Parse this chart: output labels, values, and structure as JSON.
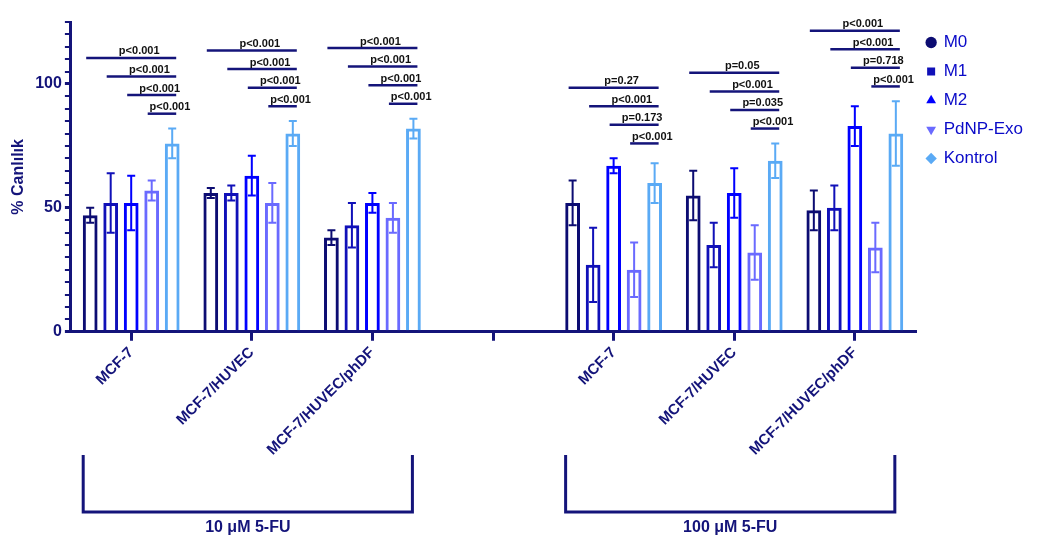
{
  "chart_data": {
    "type": "bar",
    "ylabel": "% Canlılık",
    "categories": [
      "MCF-7",
      "MCF-7/HUVEC",
      "MCF-7/HUVEC/phDF",
      null,
      "MCF-7",
      "MCF-7/HUVEC",
      "MCF-7/HUVEC/phDF"
    ],
    "series": [
      {
        "name": "M0",
        "color": "#0c0c72",
        "marker": "circle",
        "values": [
          47,
          56,
          38,
          null,
          52,
          55,
          49
        ],
        "errors": [
          3,
          2,
          3,
          null,
          9,
          10,
          8
        ]
      },
      {
        "name": "M1",
        "color": "#1010b8",
        "marker": "square",
        "values": [
          52,
          56,
          43,
          null,
          27,
          35,
          50
        ],
        "errors": [
          12,
          3,
          9,
          null,
          15,
          9,
          9
        ]
      },
      {
        "name": "M2",
        "color": "#0000ff",
        "marker": "triangle",
        "values": [
          52,
          63,
          52,
          null,
          67,
          56,
          83
        ],
        "errors": [
          11,
          8,
          4,
          null,
          3,
          10,
          8
        ]
      },
      {
        "name": "PdNP-Exo",
        "color": "#6a6aff",
        "marker": "triangle-down",
        "values": [
          57,
          52,
          46,
          null,
          25,
          32,
          34
        ],
        "errors": [
          4,
          8,
          6,
          null,
          11,
          11,
          10
        ]
      },
      {
        "name": "Kontrol",
        "color": "#5aaaf5",
        "marker": "diamond",
        "values": [
          76,
          80,
          82,
          null,
          60,
          69,
          80
        ],
        "errors": [
          6,
          5,
          4,
          null,
          8,
          7,
          13
        ]
      }
    ],
    "ylim": [
      0,
      125
    ],
    "yticks": [
      0,
      {
        "value": 5,
        "label": null
      },
      {
        "value": 10,
        "label": null
      },
      {
        "value": 15,
        "label": null
      },
      {
        "value": 20,
        "label": null
      },
      {
        "value": 25,
        "label": null
      },
      {
        "value": 30,
        "label": null
      },
      {
        "value": 35,
        "label": null
      },
      {
        "value": 40,
        "label": null
      },
      {
        "value": 45,
        "label": null
      },
      50,
      {
        "value": 55,
        "label": null
      },
      {
        "value": 60,
        "label": null
      },
      {
        "value": 65,
        "label": null
      },
      {
        "value": 70,
        "label": null
      },
      {
        "value": 75,
        "label": null
      },
      {
        "value": 80,
        "label": null
      },
      {
        "value": 85,
        "label": null
      },
      {
        "value": 90,
        "label": null
      },
      {
        "value": 95,
        "label": null
      },
      100,
      {
        "value": 105,
        "label": null
      },
      {
        "value": 110,
        "label": null
      },
      {
        "value": 115,
        "label": null
      },
      {
        "value": 120,
        "label": null
      },
      {
        "value": 125,
        "label": null
      }
    ],
    "grid": false,
    "legend": "top right",
    "annotations": [
      "p<0.001",
      "p<0.001",
      "p<0.001",
      "p<0.001",
      "p<0.001",
      "p<0.001",
      "p<0.001",
      "p<0.001",
      "p<0.001",
      "p<0.001",
      "p<0.001",
      "p<0.001",
      "p=0.27",
      "p<0.001",
      "p=0.173",
      "p<0.001",
      "p=0.05",
      "p<0.001",
      "p=0.035",
      "p<0.001",
      "p<0.001",
      "p<0.001",
      "p=0.718",
      "p<0.001",
      "10 μM 5-FU",
      "100 μM 5-FU"
    ]
  }
}
